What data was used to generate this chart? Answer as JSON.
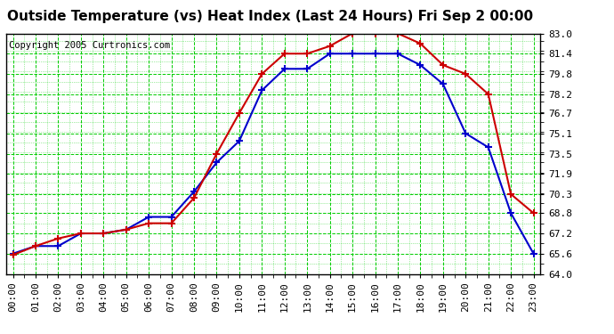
{
  "title": "Outside Temperature (vs) Heat Index (Last 24 Hours) Fri Sep 2 00:00",
  "copyright": "Copyright 2005 Curtronics.com",
  "hours": [
    0,
    1,
    2,
    3,
    4,
    5,
    6,
    7,
    8,
    9,
    10,
    11,
    12,
    13,
    14,
    15,
    16,
    17,
    18,
    19,
    20,
    21,
    22,
    23
  ],
  "temp": [
    65.6,
    66.2,
    66.2,
    67.2,
    67.2,
    67.5,
    68.5,
    68.5,
    70.5,
    72.8,
    74.5,
    78.5,
    80.2,
    80.2,
    81.4,
    81.4,
    81.4,
    81.4,
    80.5,
    79.0,
    75.1,
    74.0,
    68.8,
    65.6
  ],
  "heat_index": [
    65.5,
    66.2,
    66.8,
    67.2,
    67.2,
    67.5,
    68.0,
    68.0,
    70.0,
    73.5,
    76.7,
    79.8,
    81.4,
    81.4,
    82.0,
    83.0,
    83.0,
    83.0,
    82.2,
    80.5,
    79.8,
    78.2,
    70.3,
    68.8
  ],
  "temp_color": "#0000CC",
  "heat_index_color": "#CC0000",
  "bg_color": "#ffffff",
  "plot_bg_color": "#ffffff",
  "grid_color": "#00CC00",
  "ylim": [
    64.0,
    83.0
  ],
  "yticks": [
    64.0,
    65.6,
    67.2,
    68.8,
    70.3,
    71.9,
    73.5,
    75.1,
    76.7,
    78.2,
    79.8,
    81.4,
    83.0
  ],
  "title_fontsize": 11,
  "copyright_fontsize": 7.5,
  "tick_fontsize": 8,
  "marker": "+",
  "markersize": 5,
  "linewidth": 1.5
}
